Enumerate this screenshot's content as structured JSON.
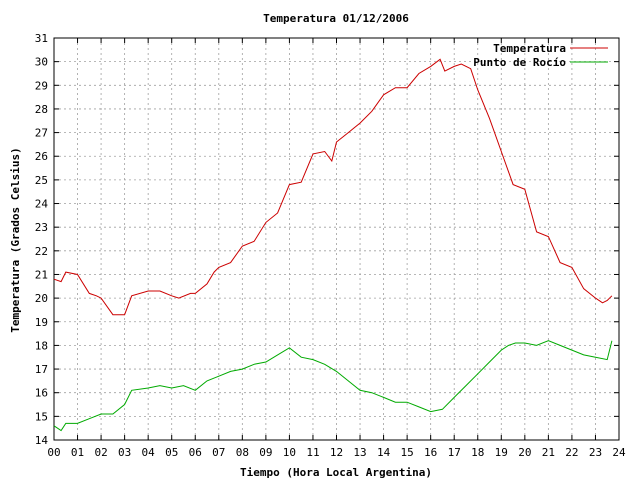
{
  "chart_data": {
    "type": "line",
    "title": "Temperatura 01/12/2006",
    "xlabel": "Tiempo (Hora Local Argentina)",
    "ylabel": "Temperatura (Grados Celsius)",
    "xlim": [
      0,
      24
    ],
    "ylim": [
      14,
      31
    ],
    "x_ticks": [
      "00",
      "01",
      "02",
      "03",
      "04",
      "05",
      "06",
      "07",
      "08",
      "09",
      "10",
      "11",
      "12",
      "13",
      "14",
      "15",
      "16",
      "17",
      "18",
      "19",
      "20",
      "21",
      "22",
      "23",
      "24"
    ],
    "y_ticks": [
      14,
      15,
      16,
      17,
      18,
      19,
      20,
      21,
      22,
      23,
      24,
      25,
      26,
      27,
      28,
      29,
      30,
      31
    ],
    "grid": true,
    "legend_position": "top-right",
    "series": [
      {
        "name": "Temperatura",
        "color": "#cc0000",
        "x": [
          0,
          0.3,
          0.5,
          1.0,
          1.5,
          1.8,
          2.0,
          2.5,
          3.0,
          3.3,
          4.0,
          4.5,
          5.0,
          5.3,
          5.8,
          6.0,
          6.5,
          6.8,
          7.0,
          7.5,
          8.0,
          8.5,
          9.0,
          9.5,
          10.0,
          10.5,
          11.0,
          11.5,
          11.8,
          12.0,
          12.5,
          13.0,
          13.5,
          14.0,
          14.5,
          15.0,
          15.5,
          16.0,
          16.4,
          16.6,
          17.0,
          17.3,
          17.7,
          18.0,
          18.5,
          19.0,
          19.5,
          20.0,
          20.5,
          21.0,
          21.5,
          22.0,
          22.5,
          23.0,
          23.3,
          23.5,
          23.7
        ],
        "y": [
          20.8,
          20.7,
          21.1,
          21.0,
          20.2,
          20.1,
          20.0,
          19.3,
          19.3,
          20.1,
          20.3,
          20.3,
          20.1,
          20.0,
          20.2,
          20.2,
          20.6,
          21.1,
          21.3,
          21.5,
          22.2,
          22.4,
          23.2,
          23.6,
          24.8,
          24.9,
          26.1,
          26.2,
          25.8,
          26.6,
          27.0,
          27.4,
          27.9,
          28.6,
          28.9,
          28.9,
          29.5,
          29.8,
          30.1,
          29.6,
          29.8,
          29.9,
          29.7,
          28.8,
          27.6,
          26.2,
          24.8,
          24.6,
          22.8,
          22.6,
          21.5,
          21.3,
          20.4,
          20.0,
          19.8,
          19.9,
          20.1
        ]
      },
      {
        "name": "Punto de Rocío",
        "color": "#00aa00",
        "x": [
          0,
          0.3,
          0.5,
          1.0,
          1.5,
          2.0,
          2.5,
          3.0,
          3.3,
          4.0,
          4.5,
          5.0,
          5.5,
          6.0,
          6.5,
          7.0,
          7.5,
          8.0,
          8.5,
          9.0,
          9.5,
          10.0,
          10.5,
          11.0,
          11.5,
          12.0,
          12.5,
          13.0,
          13.5,
          14.0,
          14.5,
          15.0,
          15.5,
          16.0,
          16.5,
          17.0,
          17.5,
          18.0,
          18.5,
          19.0,
          19.3,
          19.6,
          20.0,
          20.5,
          21.0,
          21.5,
          22.0,
          22.5,
          23.0,
          23.5,
          23.7
        ],
        "y": [
          14.6,
          14.4,
          14.7,
          14.7,
          14.9,
          15.1,
          15.1,
          15.5,
          16.1,
          16.2,
          16.3,
          16.2,
          16.3,
          16.1,
          16.5,
          16.7,
          16.9,
          17.0,
          17.2,
          17.3,
          17.6,
          17.9,
          17.5,
          17.4,
          17.2,
          16.9,
          16.5,
          16.1,
          16.0,
          15.8,
          15.6,
          15.6,
          15.4,
          15.2,
          15.3,
          15.8,
          16.3,
          16.8,
          17.3,
          17.8,
          18.0,
          18.1,
          18.1,
          18.0,
          18.2,
          18.0,
          17.8,
          17.6,
          17.5,
          17.4,
          18.2
        ]
      }
    ]
  }
}
